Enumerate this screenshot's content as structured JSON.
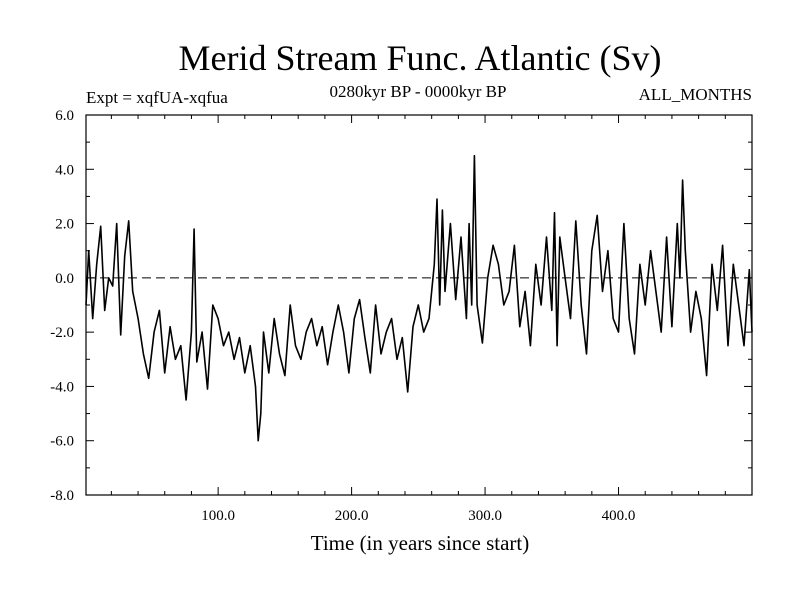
{
  "chart_data": {
    "type": "line",
    "title": "Merid Stream Func. Atlantic (Sv)",
    "subtitle_left": "Expt = xqfUA-xqfua",
    "subtitle_center": "0280kyr BP - 0000kyr BP",
    "subtitle_right": "ALL_MONTHS",
    "xlabel": "Time (in years since start)",
    "ylabel": "",
    "xlim": [
      1,
      500
    ],
    "ylim": [
      -8.0,
      6.0
    ],
    "xticks": [
      100.0,
      200.0,
      300.0,
      400.0
    ],
    "xtick_labels": [
      "100.0",
      "200.0",
      "300.0",
      "400.0"
    ],
    "yticks": [
      -8.0,
      -6.0,
      -4.0,
      -2.0,
      0.0,
      2.0,
      4.0,
      6.0
    ],
    "ytick_labels": [
      "-8.0",
      "-6.0",
      "-4.0",
      "-2.0",
      "0.0",
      "2.0",
      "4.0",
      "6.0"
    ],
    "reference_line": {
      "y": 0.0,
      "style": "dashed"
    },
    "series": [
      {
        "name": "Merid Stream Func. Atlantic",
        "color": "#000000",
        "x": [
          1,
          3,
          6,
          9,
          12,
          15,
          18,
          21,
          24,
          27,
          30,
          33,
          36,
          40,
          44,
          48,
          52,
          56,
          60,
          64,
          68,
          72,
          76,
          80,
          82,
          84,
          88,
          92,
          96,
          100,
          104,
          108,
          112,
          116,
          120,
          124,
          128,
          130,
          132,
          134,
          138,
          142,
          146,
          150,
          154,
          158,
          162,
          166,
          170,
          174,
          178,
          182,
          186,
          190,
          194,
          198,
          202,
          206,
          210,
          214,
          218,
          222,
          226,
          230,
          234,
          238,
          242,
          246,
          250,
          254,
          258,
          262,
          264,
          266,
          268,
          270,
          274,
          278,
          282,
          286,
          288,
          290,
          292,
          294,
          298,
          302,
          306,
          310,
          314,
          318,
          322,
          326,
          330,
          334,
          338,
          342,
          346,
          350,
          352,
          354,
          356,
          360,
          364,
          368,
          372,
          376,
          380,
          384,
          388,
          392,
          396,
          400,
          404,
          408,
          412,
          416,
          420,
          424,
          428,
          432,
          436,
          440,
          444,
          446,
          448,
          450,
          454,
          458,
          462,
          466,
          470,
          474,
          478,
          482,
          486,
          490,
          494,
          498,
          500
        ],
        "values": [
          -1.0,
          1.0,
          -1.5,
          0.5,
          1.9,
          -1.2,
          0.0,
          -0.3,
          2.0,
          -2.1,
          0.8,
          2.1,
          -0.5,
          -1.5,
          -2.8,
          -3.7,
          -2.0,
          -1.2,
          -3.5,
          -1.8,
          -3.0,
          -2.5,
          -4.5,
          -2.0,
          1.8,
          -3.1,
          -2.0,
          -4.1,
          -1.0,
          -1.5,
          -2.5,
          -2.0,
          -3.0,
          -2.2,
          -3.5,
          -2.5,
          -4.0,
          -6.0,
          -5.0,
          -2.0,
          -3.5,
          -1.5,
          -2.8,
          -3.6,
          -1.0,
          -2.5,
          -3.0,
          -2.0,
          -1.5,
          -2.5,
          -1.8,
          -3.2,
          -2.0,
          -1.0,
          -2.0,
          -3.5,
          -1.5,
          -0.8,
          -2.2,
          -3.5,
          -1.0,
          -2.8,
          -2.0,
          -1.5,
          -3.0,
          -2.2,
          -4.2,
          -1.8,
          -1.0,
          -2.0,
          -1.5,
          0.5,
          2.9,
          -1.0,
          2.5,
          -0.5,
          2.0,
          -0.8,
          1.5,
          -1.5,
          2.0,
          -1.0,
          4.5,
          -1.0,
          -2.4,
          0.0,
          1.2,
          0.5,
          -1.0,
          -0.5,
          1.2,
          -1.8,
          -0.5,
          -2.5,
          0.5,
          -1.0,
          1.5,
          -1.2,
          2.4,
          -2.5,
          1.5,
          0.0,
          -1.5,
          2.1,
          -1.0,
          -2.8,
          1.0,
          2.3,
          -0.5,
          1.0,
          -1.5,
          -2.0,
          2.0,
          -1.5,
          -2.8,
          0.5,
          -1.0,
          1.0,
          -0.5,
          -2.0,
          1.5,
          -1.8,
          2.0,
          0.0,
          3.6,
          1.0,
          -2.0,
          -0.5,
          -1.5,
          -3.6,
          0.5,
          -1.2,
          1.2,
          -2.5,
          0.5,
          -1.0,
          -2.5,
          0.3,
          -2.0
        ]
      }
    ]
  }
}
